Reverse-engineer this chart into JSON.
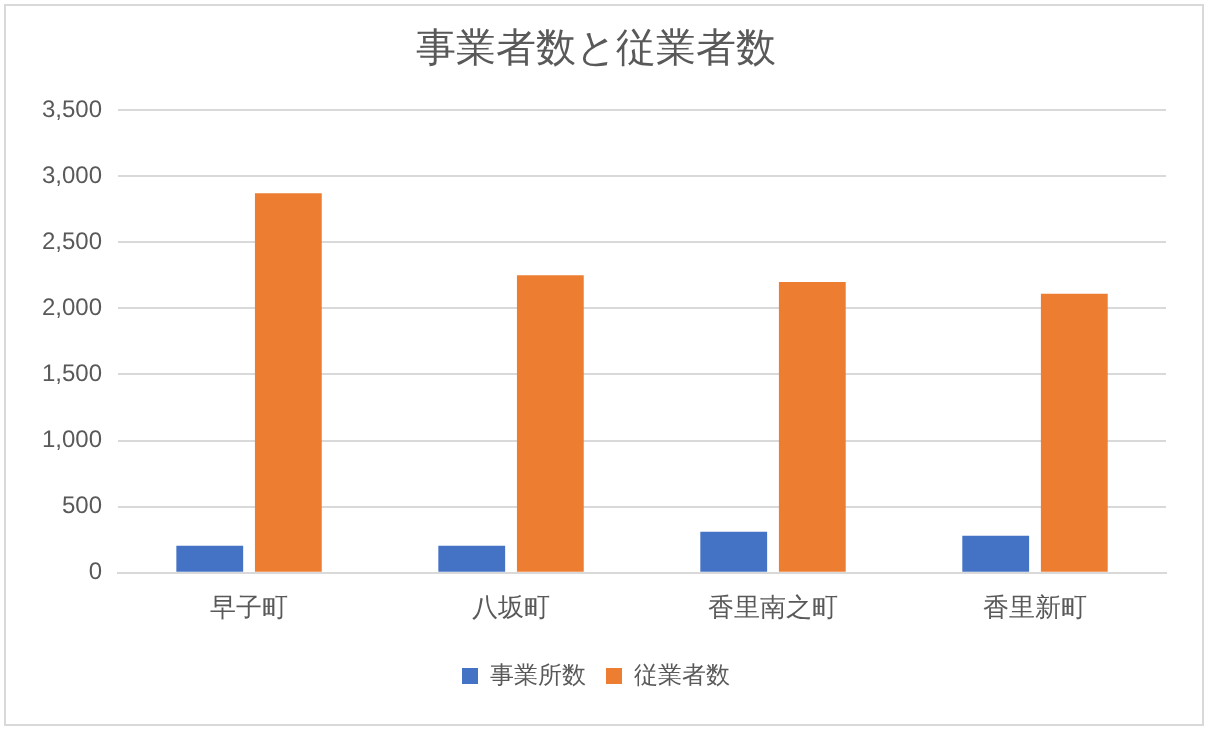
{
  "chart_data": {
    "type": "bar",
    "title": "事業者数と従業者数",
    "categories": [
      "早子町",
      "八坂町",
      "香里南之町",
      "香里新町"
    ],
    "series": [
      {
        "name": "事業所数",
        "color": "#4472c4",
        "values": [
          205,
          205,
          310,
          280
        ]
      },
      {
        "name": "従業者数",
        "color": "#ed7d31",
        "values": [
          2870,
          2250,
          2200,
          2110
        ]
      }
    ],
    "ylim": [
      0,
      3500
    ],
    "yticks": [
      {
        "value": 0,
        "label": "0"
      },
      {
        "value": 500,
        "label": "500"
      },
      {
        "value": 1000,
        "label": "1,000"
      },
      {
        "value": 1500,
        "label": "1,500"
      },
      {
        "value": 2000,
        "label": "2,000"
      },
      {
        "value": 2500,
        "label": "2,500"
      },
      {
        "value": 3000,
        "label": "3,000"
      },
      {
        "value": 3500,
        "label": "3,500"
      }
    ],
    "grid": "y",
    "legend": "bottom"
  }
}
